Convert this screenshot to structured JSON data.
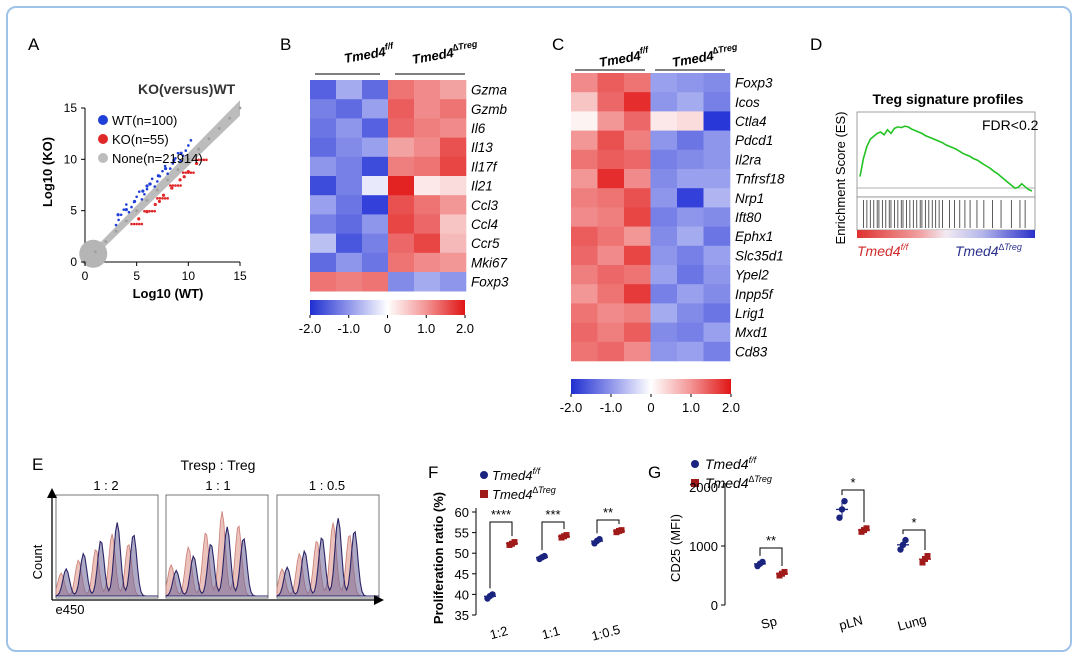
{
  "panels": {
    "A": {
      "letter": "A",
      "title": "KO(versus)WT",
      "legend": [
        {
          "label": "WT(n=100)",
          "color": "#1f3fd6"
        },
        {
          "label": "KO(n=55)",
          "color": "#e02828"
        },
        {
          "label": "None(n=21914)",
          "color": "#bdbdbd"
        }
      ],
      "xlabel": "Log10 (WT)",
      "ylabel": "Log10 (KO)",
      "xticks": [
        "0",
        "5",
        "10",
        "15"
      ],
      "yticks": [
        "0",
        "5",
        "10",
        "15"
      ]
    },
    "B": {
      "letter": "B",
      "group1": "Tmed4",
      "group1_sup": "f/f",
      "group2": "Tmed4",
      "group2_sup": "∆Treg",
      "genes": [
        "Gzma",
        "Gzmb",
        "Il6",
        "Il13",
        "Il17f",
        "Il21",
        "Ccl3",
        "Ccl4",
        "Ccr5",
        "Mki67",
        "Foxp3"
      ],
      "scale_ticks": [
        "-2.0",
        "-1.0",
        "0",
        "1.0",
        "2.0"
      ]
    },
    "C": {
      "letter": "C",
      "group1": "Tmed4",
      "group1_sup": "f/f",
      "group2": "Tmed4",
      "group2_sup": "∆Treg",
      "genes": [
        "Foxp3",
        "Icos",
        "Ctla4",
        "Pdcd1",
        "Il2ra",
        "Tnfrsf18",
        "Nrp1",
        "Ift80",
        "Ephx1",
        "Slc35d1",
        "Ypel2",
        "Inpp5f",
        "Lrig1",
        "Mxd1",
        "Cd83"
      ],
      "scale_ticks": [
        "-2.0",
        "-1.0",
        "0",
        "1.0",
        "2.0"
      ]
    },
    "D": {
      "letter": "D",
      "title": "Treg signature profiles",
      "annotation": "FDR<0.2",
      "ylabel": "Enrichment Score (ES)",
      "left_label": "Tmed4",
      "left_sup": "f/f",
      "right_label": "Tmed4",
      "right_sup": "∆Treg"
    },
    "E": {
      "letter": "E",
      "header": "Tresp  :  Treg",
      "ratios": [
        "1 : 2",
        "1 : 1",
        "1 : 0.5"
      ],
      "ylabel": "Count",
      "xlabel": "e450"
    },
    "F": {
      "letter": "F",
      "legend_wt": "Tmed4",
      "legend_wt_sup": "f/f",
      "legend_ko": "Tmed4",
      "legend_ko_sup": "∆Treg",
      "ylabel": "Proliferation ratio (%)",
      "significance": [
        "****",
        "***",
        "**"
      ]
    },
    "G": {
      "letter": "G",
      "legend_wt": "Tmed4",
      "legend_wt_sup": "f/f",
      "legend_ko": "Tmed4",
      "legend_ko_sup": "∆Treg",
      "ylabel": "CD25 (MFI)",
      "significance": [
        "**",
        "*",
        "*"
      ]
    }
  },
  "chart_data": [
    {
      "panel": "A",
      "type": "scatter",
      "title": "KO(versus)WT",
      "xlabel": "Log10 (WT)",
      "ylabel": "Log10 (KO)",
      "xlim": [
        0,
        15
      ],
      "ylim": [
        0,
        15
      ],
      "series": [
        {
          "name": "WT(n=100)",
          "x": [
            4.0,
            4.8,
            5.6,
            6.3,
            7.1,
            7.8,
            8.6,
            9.3,
            3.2,
            6.0
          ],
          "y": [
            5.1,
            5.9,
            6.9,
            7.6,
            8.4,
            9.1,
            9.9,
            10.6,
            4.6,
            7.4
          ]
        },
        {
          "name": "KO(n=55)",
          "x": [
            5.2,
            6.0,
            6.8,
            7.6,
            8.4,
            9.2,
            10.0,
            10.8,
            7.2,
            9.6
          ],
          "y": [
            4.2,
            4.9,
            5.6,
            6.5,
            7.2,
            8.0,
            8.8,
            9.6,
            5.9,
            8.3
          ]
        },
        {
          "name": "None(n=21914)",
          "x": [
            0,
            1,
            2,
            3,
            4,
            5,
            6,
            7,
            8,
            9,
            10,
            11,
            12,
            13,
            14,
            15
          ],
          "y": [
            0,
            1,
            2,
            3,
            4,
            5,
            6,
            7,
            8,
            9,
            10,
            11,
            12,
            13,
            14,
            15
          ]
        }
      ]
    },
    {
      "panel": "B",
      "type": "heatmap",
      "rows": [
        "Gzma",
        "Gzmb",
        "Il6",
        "Il13",
        "Il17f",
        "Il21",
        "Ccl3",
        "Ccl4",
        "Ccr5",
        "Mki67",
        "Foxp3"
      ],
      "columns": [
        "Tmed4f/f-1",
        "Tmed4f/f-2",
        "Tmed4f/f-3",
        "Tmed4∆Treg-1",
        "Tmed4∆Treg-2",
        "Tmed4∆Treg-3"
      ],
      "values": [
        [
          -1.5,
          -0.8,
          -1.4,
          1.2,
          1.0,
          0.8
        ],
        [
          -1.2,
          -1.4,
          -0.9,
          1.4,
          1.0,
          1.2
        ],
        [
          -1.3,
          -1.0,
          -1.5,
          1.3,
          1.1,
          1.0
        ],
        [
          -1.4,
          -1.1,
          -0.9,
          0.8,
          1.0,
          1.5
        ],
        [
          -1.0,
          -1.2,
          -1.7,
          1.1,
          1.2,
          1.6
        ],
        [
          -1.7,
          -1.2,
          -0.2,
          1.9,
          0.2,
          0.3
        ],
        [
          -0.9,
          -1.3,
          -1.8,
          1.5,
          1.2,
          0.9
        ],
        [
          -1.2,
          -1.4,
          -1.0,
          1.6,
          1.3,
          0.5
        ],
        [
          -0.6,
          -1.6,
          -1.2,
          1.3,
          1.6,
          0.6
        ],
        [
          -1.4,
          -1.0,
          -1.3,
          1.2,
          1.0,
          0.9
        ],
        [
          1.2,
          1.1,
          1.2,
          -1.1,
          -0.8,
          -1.0
        ]
      ],
      "scale_range": [
        -2.0,
        2.0
      ]
    },
    {
      "panel": "C",
      "type": "heatmap",
      "rows": [
        "Foxp3",
        "Icos",
        "Ctla4",
        "Pdcd1",
        "Il2ra",
        "Tnfrsf18",
        "Nrp1",
        "Ift80",
        "Ephx1",
        "Slc35d1",
        "Ypel2",
        "Inpp5f",
        "Lrig1",
        "Mxd1",
        "Cd83"
      ],
      "columns": [
        "Tmed4f/f-1",
        "Tmed4f/f-2",
        "Tmed4f/f-3",
        "Tmed4∆Treg-1",
        "Tmed4∆Treg-2",
        "Tmed4∆Treg-3"
      ],
      "values": [
        [
          1.0,
          1.4,
          1.2,
          -0.9,
          -1.0,
          -1.1
        ],
        [
          0.5,
          1.3,
          1.8,
          -1.0,
          -0.8,
          -1.2
        ],
        [
          0.1,
          0.9,
          1.3,
          0.2,
          0.3,
          -1.9
        ],
        [
          0.9,
          1.5,
          1.1,
          -1.0,
          -1.3,
          -1.0
        ],
        [
          1.2,
          1.4,
          1.3,
          -1.2,
          -1.1,
          -1.0
        ],
        [
          0.9,
          1.8,
          1.0,
          -1.1,
          -0.9,
          -0.9
        ],
        [
          1.1,
          1.2,
          1.5,
          -1.0,
          -1.8,
          -0.7
        ],
        [
          1.0,
          1.1,
          1.6,
          -1.2,
          -1.0,
          -1.1
        ],
        [
          1.4,
          1.2,
          0.9,
          -1.1,
          -0.8,
          -1.3
        ],
        [
          1.3,
          1.0,
          1.6,
          -1.0,
          -1.2,
          -0.9
        ],
        [
          1.1,
          1.3,
          1.2,
          -0.9,
          -1.3,
          -1.0
        ],
        [
          0.9,
          1.2,
          1.7,
          -1.2,
          -0.9,
          -1.1
        ],
        [
          1.2,
          1.0,
          1.1,
          -0.8,
          -1.1,
          -1.3
        ],
        [
          1.3,
          1.1,
          1.4,
          -1.1,
          -1.2,
          -0.9
        ],
        [
          1.2,
          1.3,
          1.0,
          -1.0,
          -0.9,
          -1.2
        ]
      ],
      "scale_range": [
        -2.0,
        2.0
      ]
    },
    {
      "panel": "D",
      "type": "line",
      "title": "Treg signature profiles",
      "ylabel": "Enrichment Score (ES)",
      "x": [
        0,
        2,
        4,
        6,
        8,
        10,
        12,
        14,
        16,
        18,
        20,
        22,
        24,
        26,
        28,
        30,
        32,
        34,
        36,
        38,
        40,
        42,
        44,
        46,
        48,
        50,
        52,
        54,
        56,
        58,
        60,
        62,
        64,
        66,
        68,
        70,
        72,
        74,
        76,
        78,
        80,
        82,
        84,
        86,
        88,
        90,
        92,
        94,
        96,
        98,
        100
      ],
      "y": [
        0.2,
        0.45,
        0.62,
        0.72,
        0.76,
        0.8,
        0.82,
        0.78,
        0.85,
        0.8,
        0.87,
        0.89,
        0.88,
        0.9,
        0.89,
        0.86,
        0.84,
        0.82,
        0.8,
        0.77,
        0.75,
        0.73,
        0.71,
        0.69,
        0.67,
        0.64,
        0.62,
        0.6,
        0.58,
        0.55,
        0.52,
        0.5,
        0.48,
        0.45,
        0.43,
        0.4,
        0.37,
        0.34,
        0.31,
        0.27,
        0.24,
        0.2,
        0.16,
        0.12,
        0.08,
        0.04,
        0.05,
        0.1,
        0.06,
        0.02,
        0.0
      ],
      "ylim": [
        0,
        1
      ]
    },
    {
      "panel": "E",
      "type": "area",
      "subplots": [
        "1 : 2",
        "1 : 1",
        "1 : 0.5"
      ],
      "xlabel": "e450",
      "ylabel": "Count",
      "series": [
        {
          "name": "Tmed4f/f",
          "color": "#e5a29b",
          "peaks": [
            0.72,
            0.98,
            0.85
          ]
        },
        {
          "name": "Tmed4∆Treg",
          "color": "#3a3477",
          "peaks": [
            0.85,
            0.8,
            0.9
          ]
        }
      ]
    },
    {
      "panel": "F",
      "type": "scatter",
      "categories": [
        "1:2",
        "1:1",
        "1:0.5"
      ],
      "ylabel": "Proliferation ratio (%)",
      "ylim": [
        35,
        60
      ],
      "yticks": [
        35,
        40,
        45,
        50,
        55,
        60
      ],
      "series": [
        {
          "name": "Tmed4f/f",
          "color": "#1a237e",
          "values": [
            [
              39.0,
              39.6,
              40.0
            ],
            [
              48.6,
              49.0,
              49.3
            ],
            [
              52.4,
              53.0,
              53.4
            ]
          ]
        },
        {
          "name": "Tmed4∆Treg",
          "color": "#a11a1a",
          "values": [
            [
              52.0,
              52.3,
              52.7
            ],
            [
              53.8,
              54.1,
              54.4
            ],
            [
              55.1,
              55.4,
              55.6
            ]
          ]
        }
      ],
      "significance": [
        "****",
        "***",
        "**"
      ]
    },
    {
      "panel": "G",
      "type": "scatter",
      "categories": [
        "Sp",
        "pLN",
        "Lung"
      ],
      "ylabel": "CD25 (MFI)",
      "ylim": [
        0,
        2000
      ],
      "yticks": [
        0,
        1000,
        2000
      ],
      "series": [
        {
          "name": "Tmed4f/f",
          "color": "#1a237e",
          "values": [
            [
              660,
              700,
              730
            ],
            [
              1480,
              1620,
              1760
            ],
            [
              940,
              1020,
              1100
            ]
          ]
        },
        {
          "name": "Tmed4∆Treg",
          "color": "#a11a1a",
          "values": [
            [
              500,
              530,
              560
            ],
            [
              1240,
              1270,
              1300
            ],
            [
              720,
              780,
              830
            ]
          ]
        }
      ],
      "significance": [
        "**",
        "*",
        "*"
      ]
    }
  ]
}
